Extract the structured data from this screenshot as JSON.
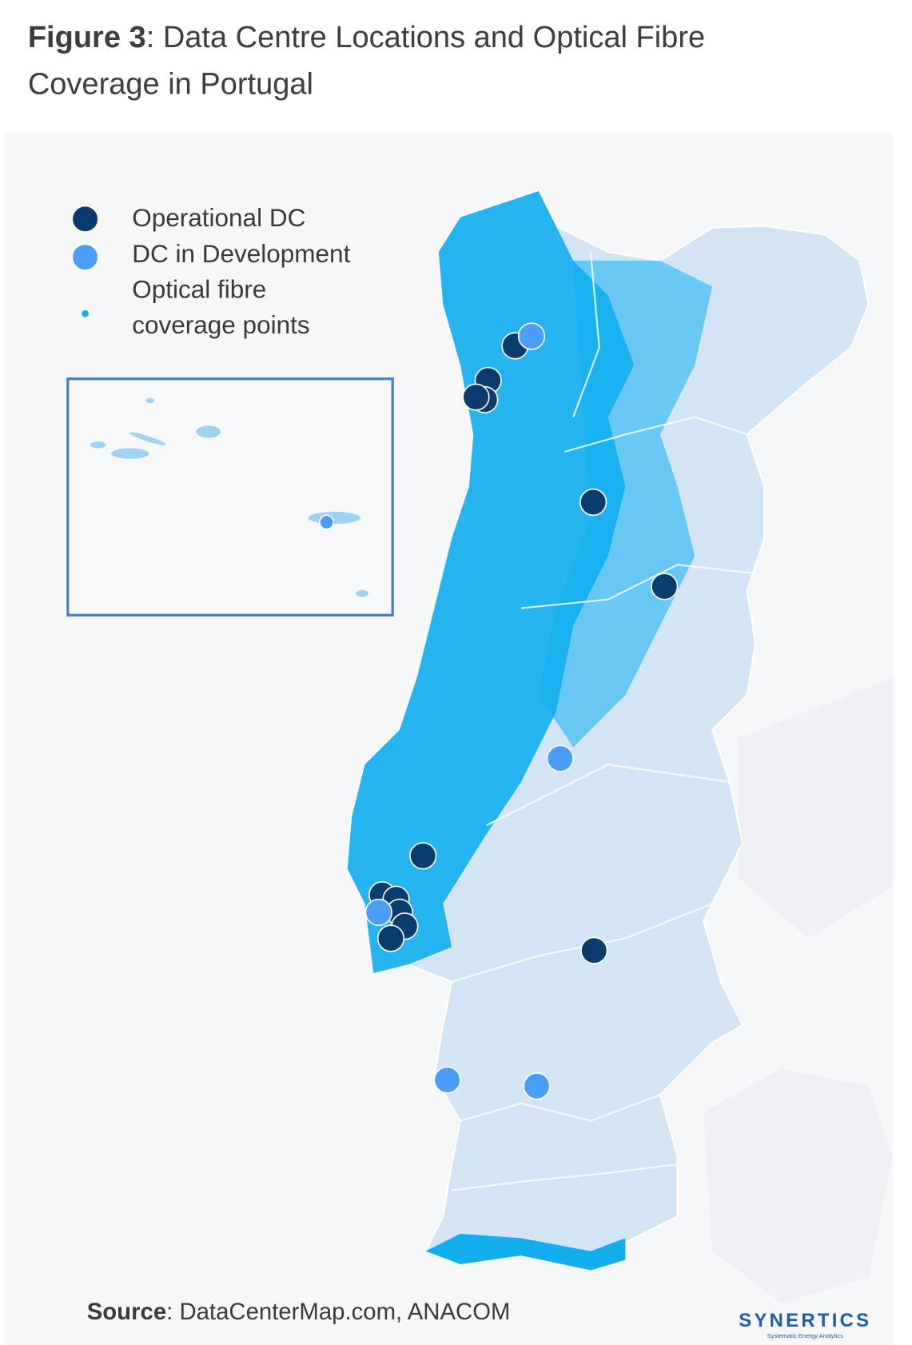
{
  "header": {
    "figure_label": "Figure 3",
    "title_line1": ": Data Centre Locations and Optical Fibre",
    "title_line2": "Coverage in Portugal"
  },
  "legend": {
    "items": [
      {
        "label": "Operational DC"
      },
      {
        "label": "DC in Development"
      },
      {
        "label_line1": "Optical fibre",
        "label_line2": "coverage points"
      }
    ]
  },
  "footer": {
    "source_label": "Source",
    "source_text": ": DataCenterMap.com, ANACOM",
    "brand": "SYNERTICS",
    "brand_tagline": "Systematic Energy Analytics"
  }
}
